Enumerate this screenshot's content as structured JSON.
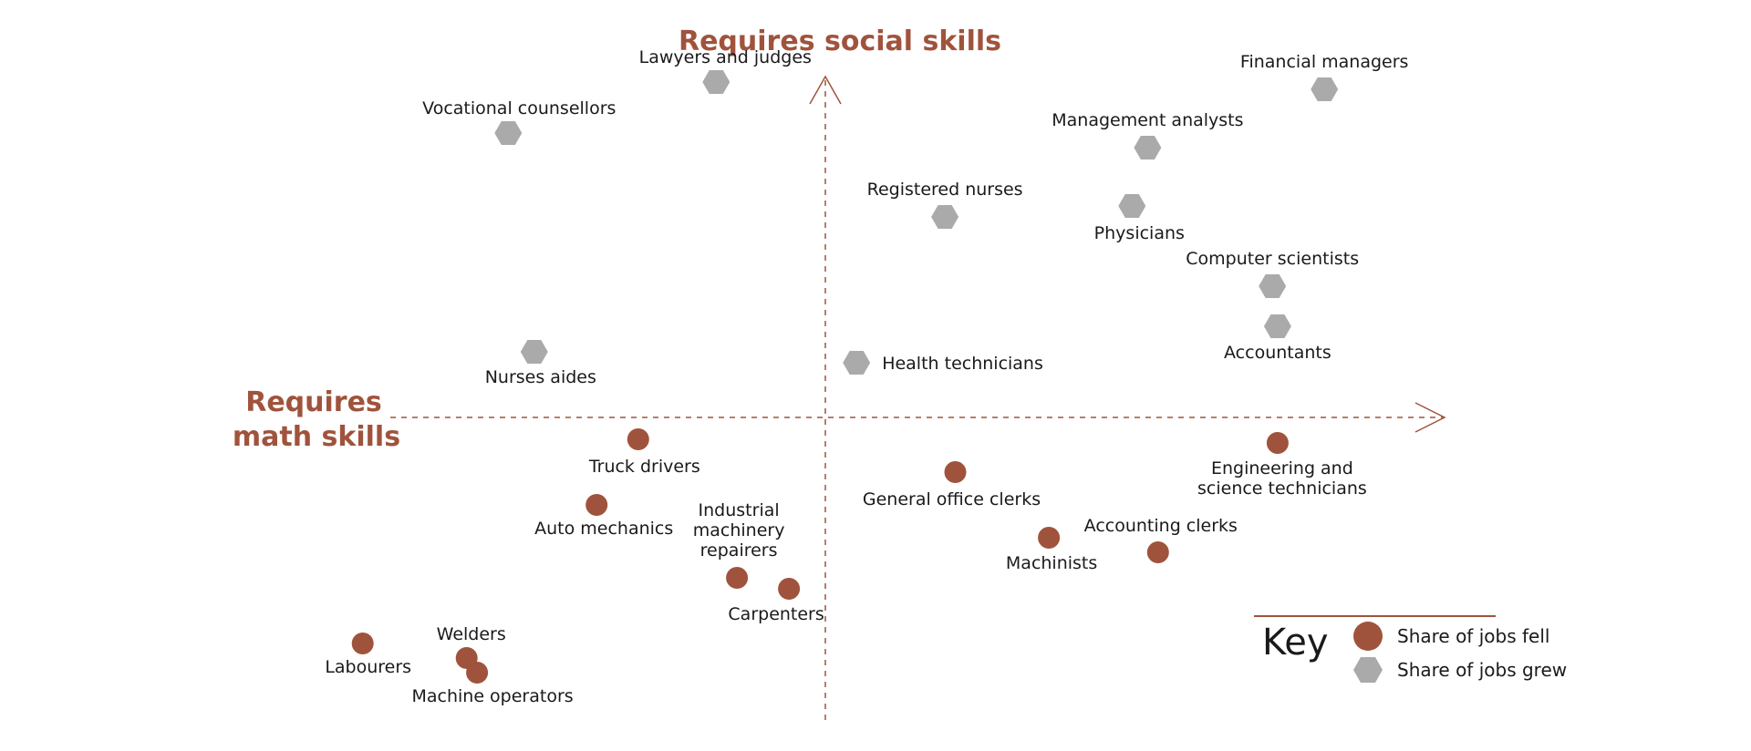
{
  "chart_data": {
    "type": "scatter",
    "title": "",
    "x_axis_label": [
      "Requires",
      "math skills"
    ],
    "y_axis_label": "Requires social skills",
    "xlim": [
      -100,
      100
    ],
    "ylim": [
      -100,
      100
    ],
    "grid": false,
    "legend_position": "bottom-right",
    "legend": {
      "title": "Key",
      "items": [
        {
          "label": "Share of jobs fell",
          "marker": "circle",
          "color": "#a0533c"
        },
        {
          "label": "Share of jobs grew",
          "marker": "hexagon",
          "color": "#aaaaaa"
        }
      ]
    },
    "series": [
      {
        "name": "Share of jobs grew",
        "marker": "hexagon",
        "color": "#aaaaaa",
        "points": [
          {
            "label": "Lawyers and judges",
            "x": -21,
            "y": 92
          },
          {
            "label": "Vocational counsellors",
            "x": -61,
            "y": 78
          },
          {
            "label": "Financial managers",
            "x": 96,
            "y": 90
          },
          {
            "label": "Management analysts",
            "x": 62,
            "y": 74
          },
          {
            "label": "Registered nurses",
            "x": 23,
            "y": 55
          },
          {
            "label": "Physicians",
            "x": 59,
            "y": 58
          },
          {
            "label": "Computer scientists",
            "x": 86,
            "y": 36
          },
          {
            "label": "Accountants",
            "x": 87,
            "y": 25
          },
          {
            "label": "Nurses aides",
            "x": -56,
            "y": 18
          },
          {
            "label": "Health technicians",
            "x": 6,
            "y": 15
          }
        ]
      },
      {
        "name": "Share of jobs fell",
        "marker": "circle",
        "color": "#a0533c",
        "points": [
          {
            "label": "Truck drivers",
            "x": -36,
            "y": -6
          },
          {
            "label": "Auto mechanics",
            "x": -44,
            "y": -24
          },
          {
            "label": "Industrial machinery repairers",
            "x": -17,
            "y": -44
          },
          {
            "label": "Carpenters",
            "x": -7,
            "y": -47
          },
          {
            "label": "Labourers",
            "x": -89,
            "y": -62
          },
          {
            "label": "Welders",
            "x": -69,
            "y": -66
          },
          {
            "label": "Machine operators",
            "x": -67,
            "y": -70
          },
          {
            "label": "General office clerks",
            "x": 25,
            "y": -15
          },
          {
            "label": "Machinists",
            "x": 43,
            "y": -33
          },
          {
            "label": "Accounting clerks",
            "x": 64,
            "y": -37
          },
          {
            "label": "Engineering and science technicians",
            "x": 87,
            "y": -7
          }
        ]
      }
    ]
  }
}
